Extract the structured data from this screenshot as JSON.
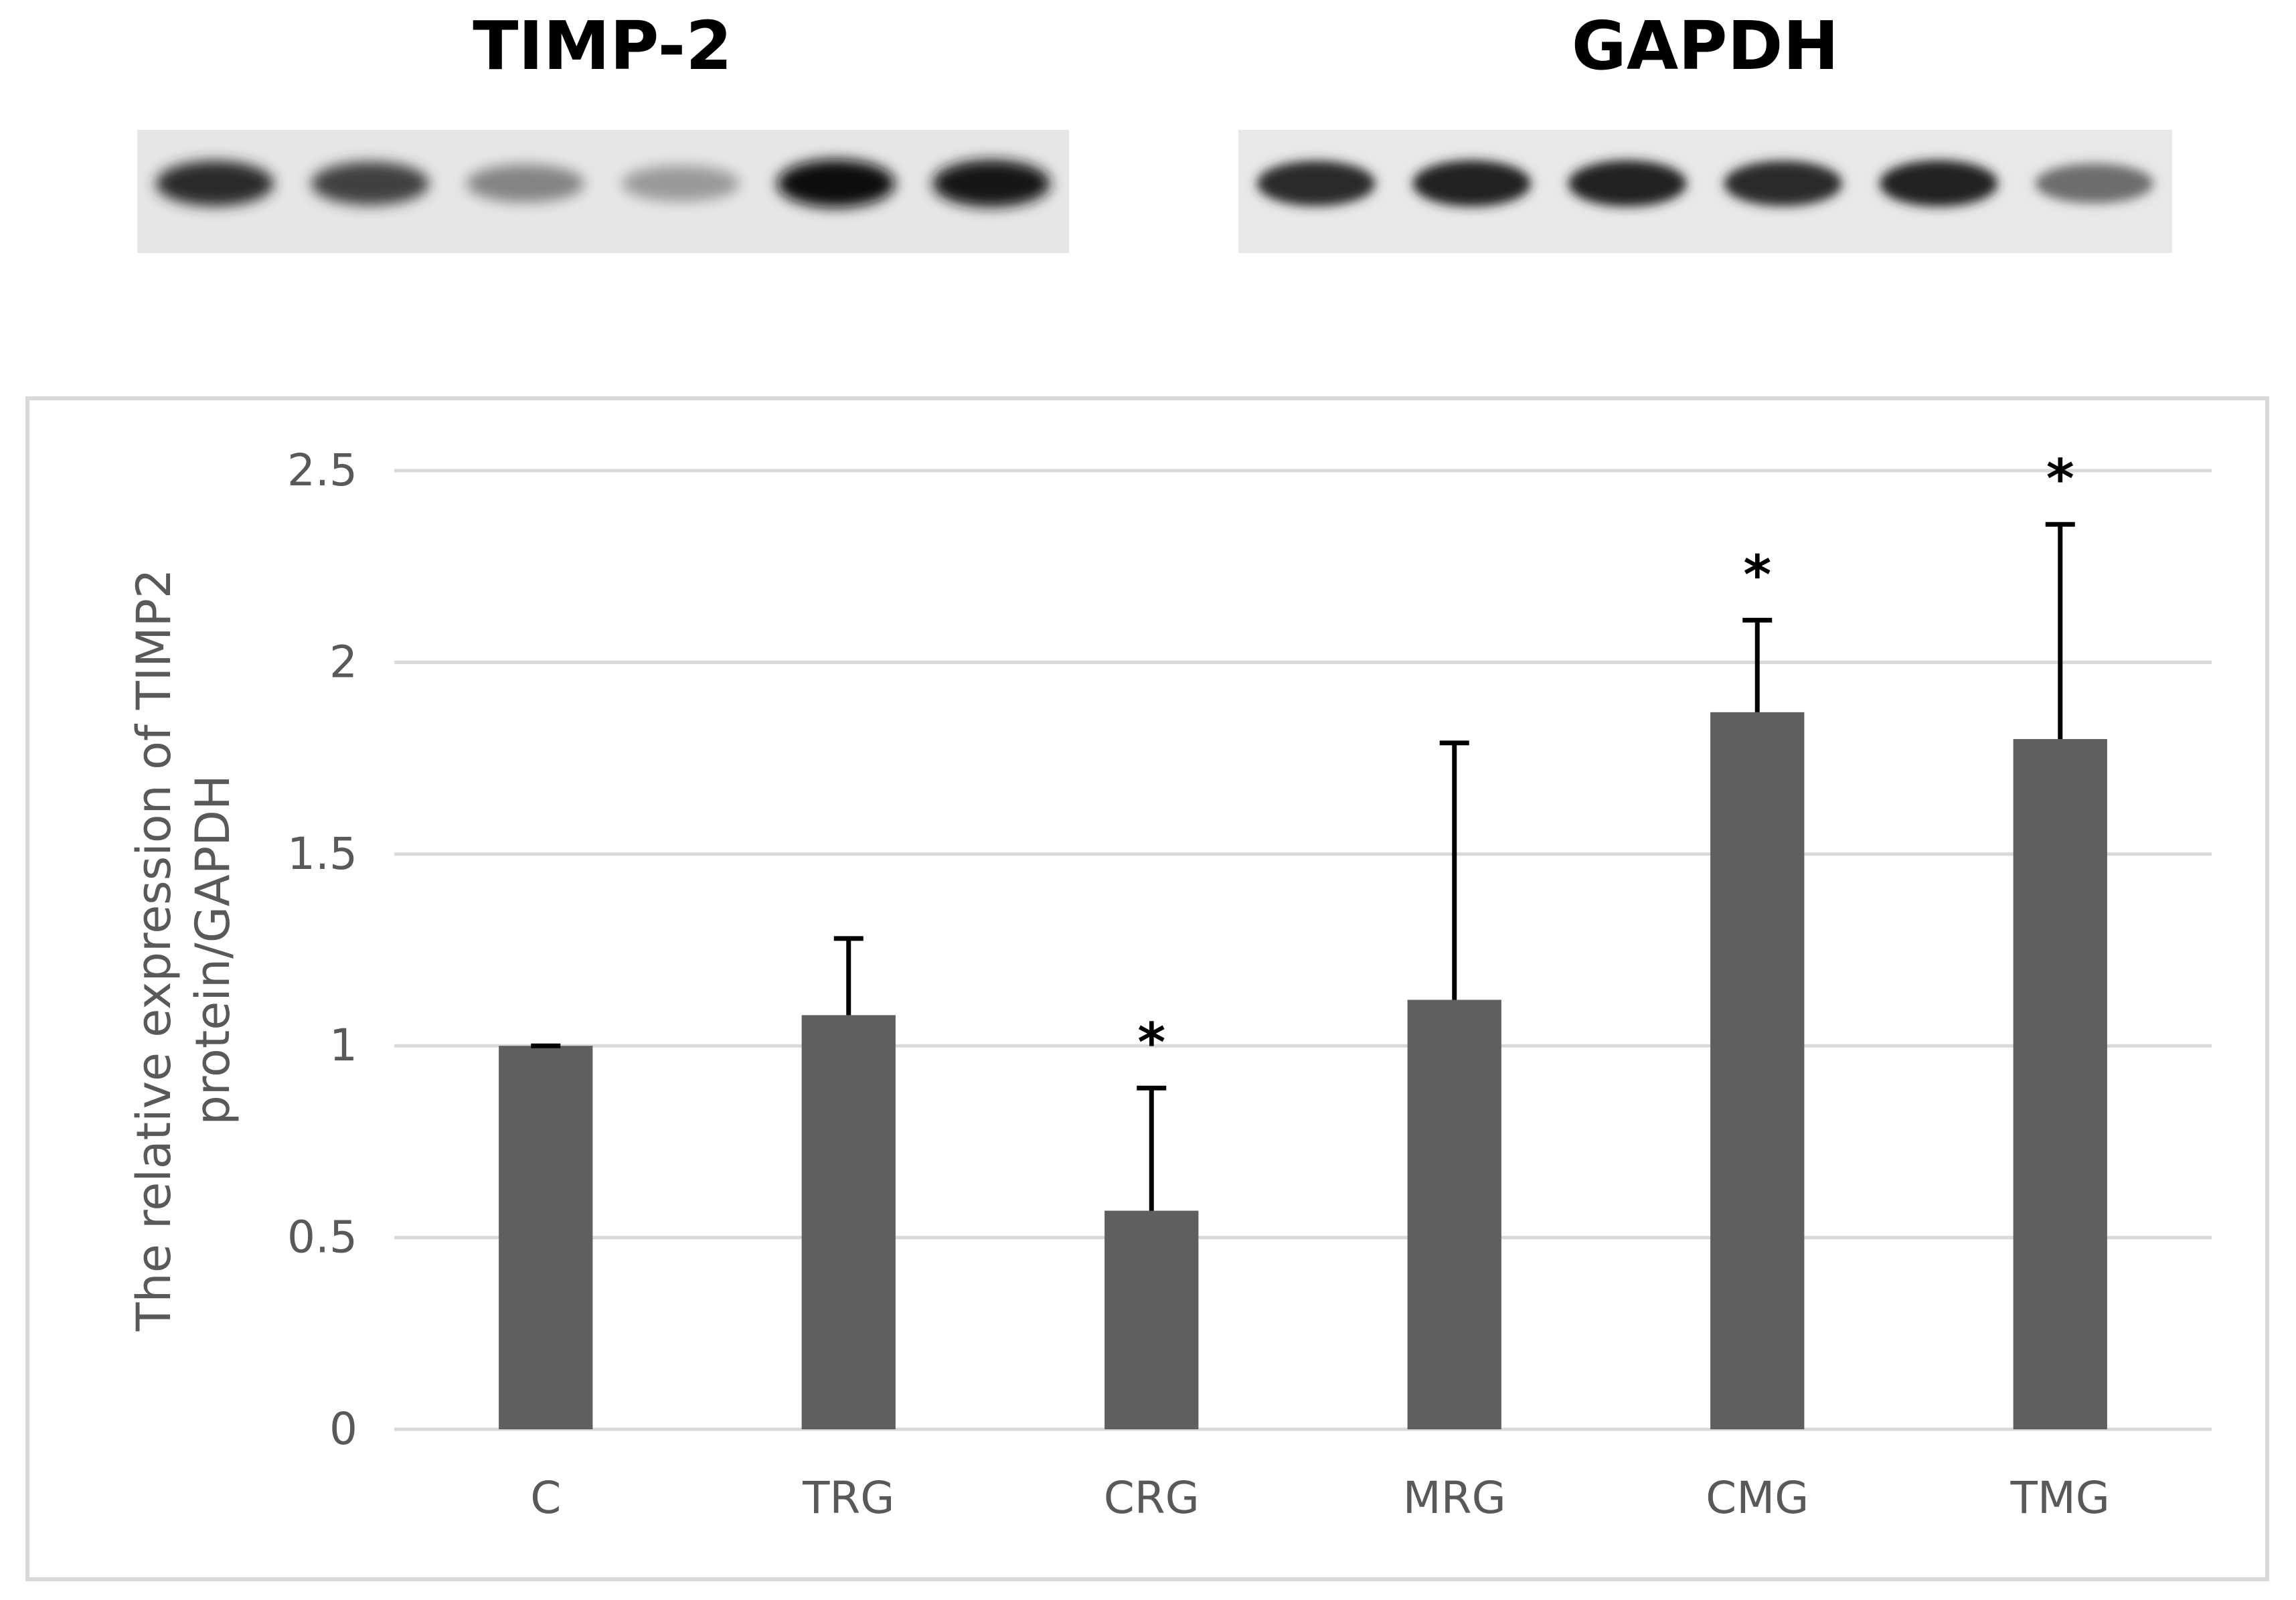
{
  "blots": {
    "timp2": {
      "title": "TIMP-2",
      "lane_intensity": [
        0.85,
        0.75,
        0.45,
        0.35,
        1.0,
        0.95
      ]
    },
    "gapdh": {
      "title": "GAPDH",
      "lane_intensity": [
        0.85,
        0.9,
        0.9,
        0.85,
        0.9,
        0.55
      ]
    }
  },
  "colors": {
    "bar": "#5f5f5f",
    "grid": "#d9d9d9",
    "text": "#595959",
    "error": "#000000"
  },
  "chart_data": {
    "type": "bar",
    "title": "",
    "xlabel": "",
    "ylabel_lines": [
      "The relative expression of TIMP2",
      "protein/GAPDH"
    ],
    "categories": [
      "C",
      "TRG",
      "CRG",
      "MRG",
      "CMG",
      "TMG"
    ],
    "values": [
      1.0,
      1.08,
      0.57,
      1.12,
      1.87,
      1.8
    ],
    "error_upper": [
      0.0,
      0.2,
      0.32,
      0.67,
      0.24,
      0.56
    ],
    "significance": [
      "",
      "",
      "*",
      "",
      "*",
      "*"
    ],
    "ylim": [
      0,
      2.5
    ],
    "yticks": [
      0,
      0.5,
      1,
      1.5,
      2,
      2.5
    ],
    "ytick_labels": [
      "0",
      "0.5",
      "1",
      "1.5",
      "2",
      "2.5"
    ],
    "grid": true,
    "legend": "none"
  }
}
